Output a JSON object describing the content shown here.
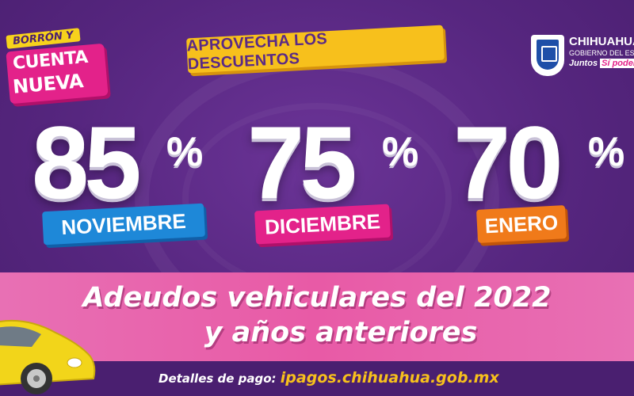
{
  "badge": {
    "line_top": "BORRÓN Y",
    "line1": "CUENTA",
    "line2": "NUEVA"
  },
  "promo": {
    "headline": "APROVECHA LOS DESCUENTOS"
  },
  "logo": {
    "name": "CHIHUAHUA",
    "subtitle": "GOBIERNO DEL ESTADO",
    "slogan_a": "Juntos",
    "slogan_b": "Sí podemos"
  },
  "discounts": [
    {
      "value": "85",
      "percent": "%",
      "month": "NOVIEMBRE",
      "color": "#1e88d8"
    },
    {
      "value": "75",
      "percent": "%",
      "month": "DICIEMBRE",
      "color": "#e3228a"
    },
    {
      "value": "70",
      "percent": "%",
      "month": "ENERO",
      "color": "#f07a1a"
    }
  ],
  "main": {
    "line1": "Adeudos vehiculares del 2022",
    "line2": "y años anteriores"
  },
  "footer": {
    "label": "Detalles de pago:",
    "url": "ipagos.chihuahua.gob.mx"
  },
  "colors": {
    "background": "#5a2a86",
    "accent_yellow": "#f7c01c",
    "accent_pink": "#e3228a",
    "band_pink": "#e870b4"
  },
  "icons": {
    "car": "car-illustration-icon",
    "shield": "state-shield-icon"
  }
}
